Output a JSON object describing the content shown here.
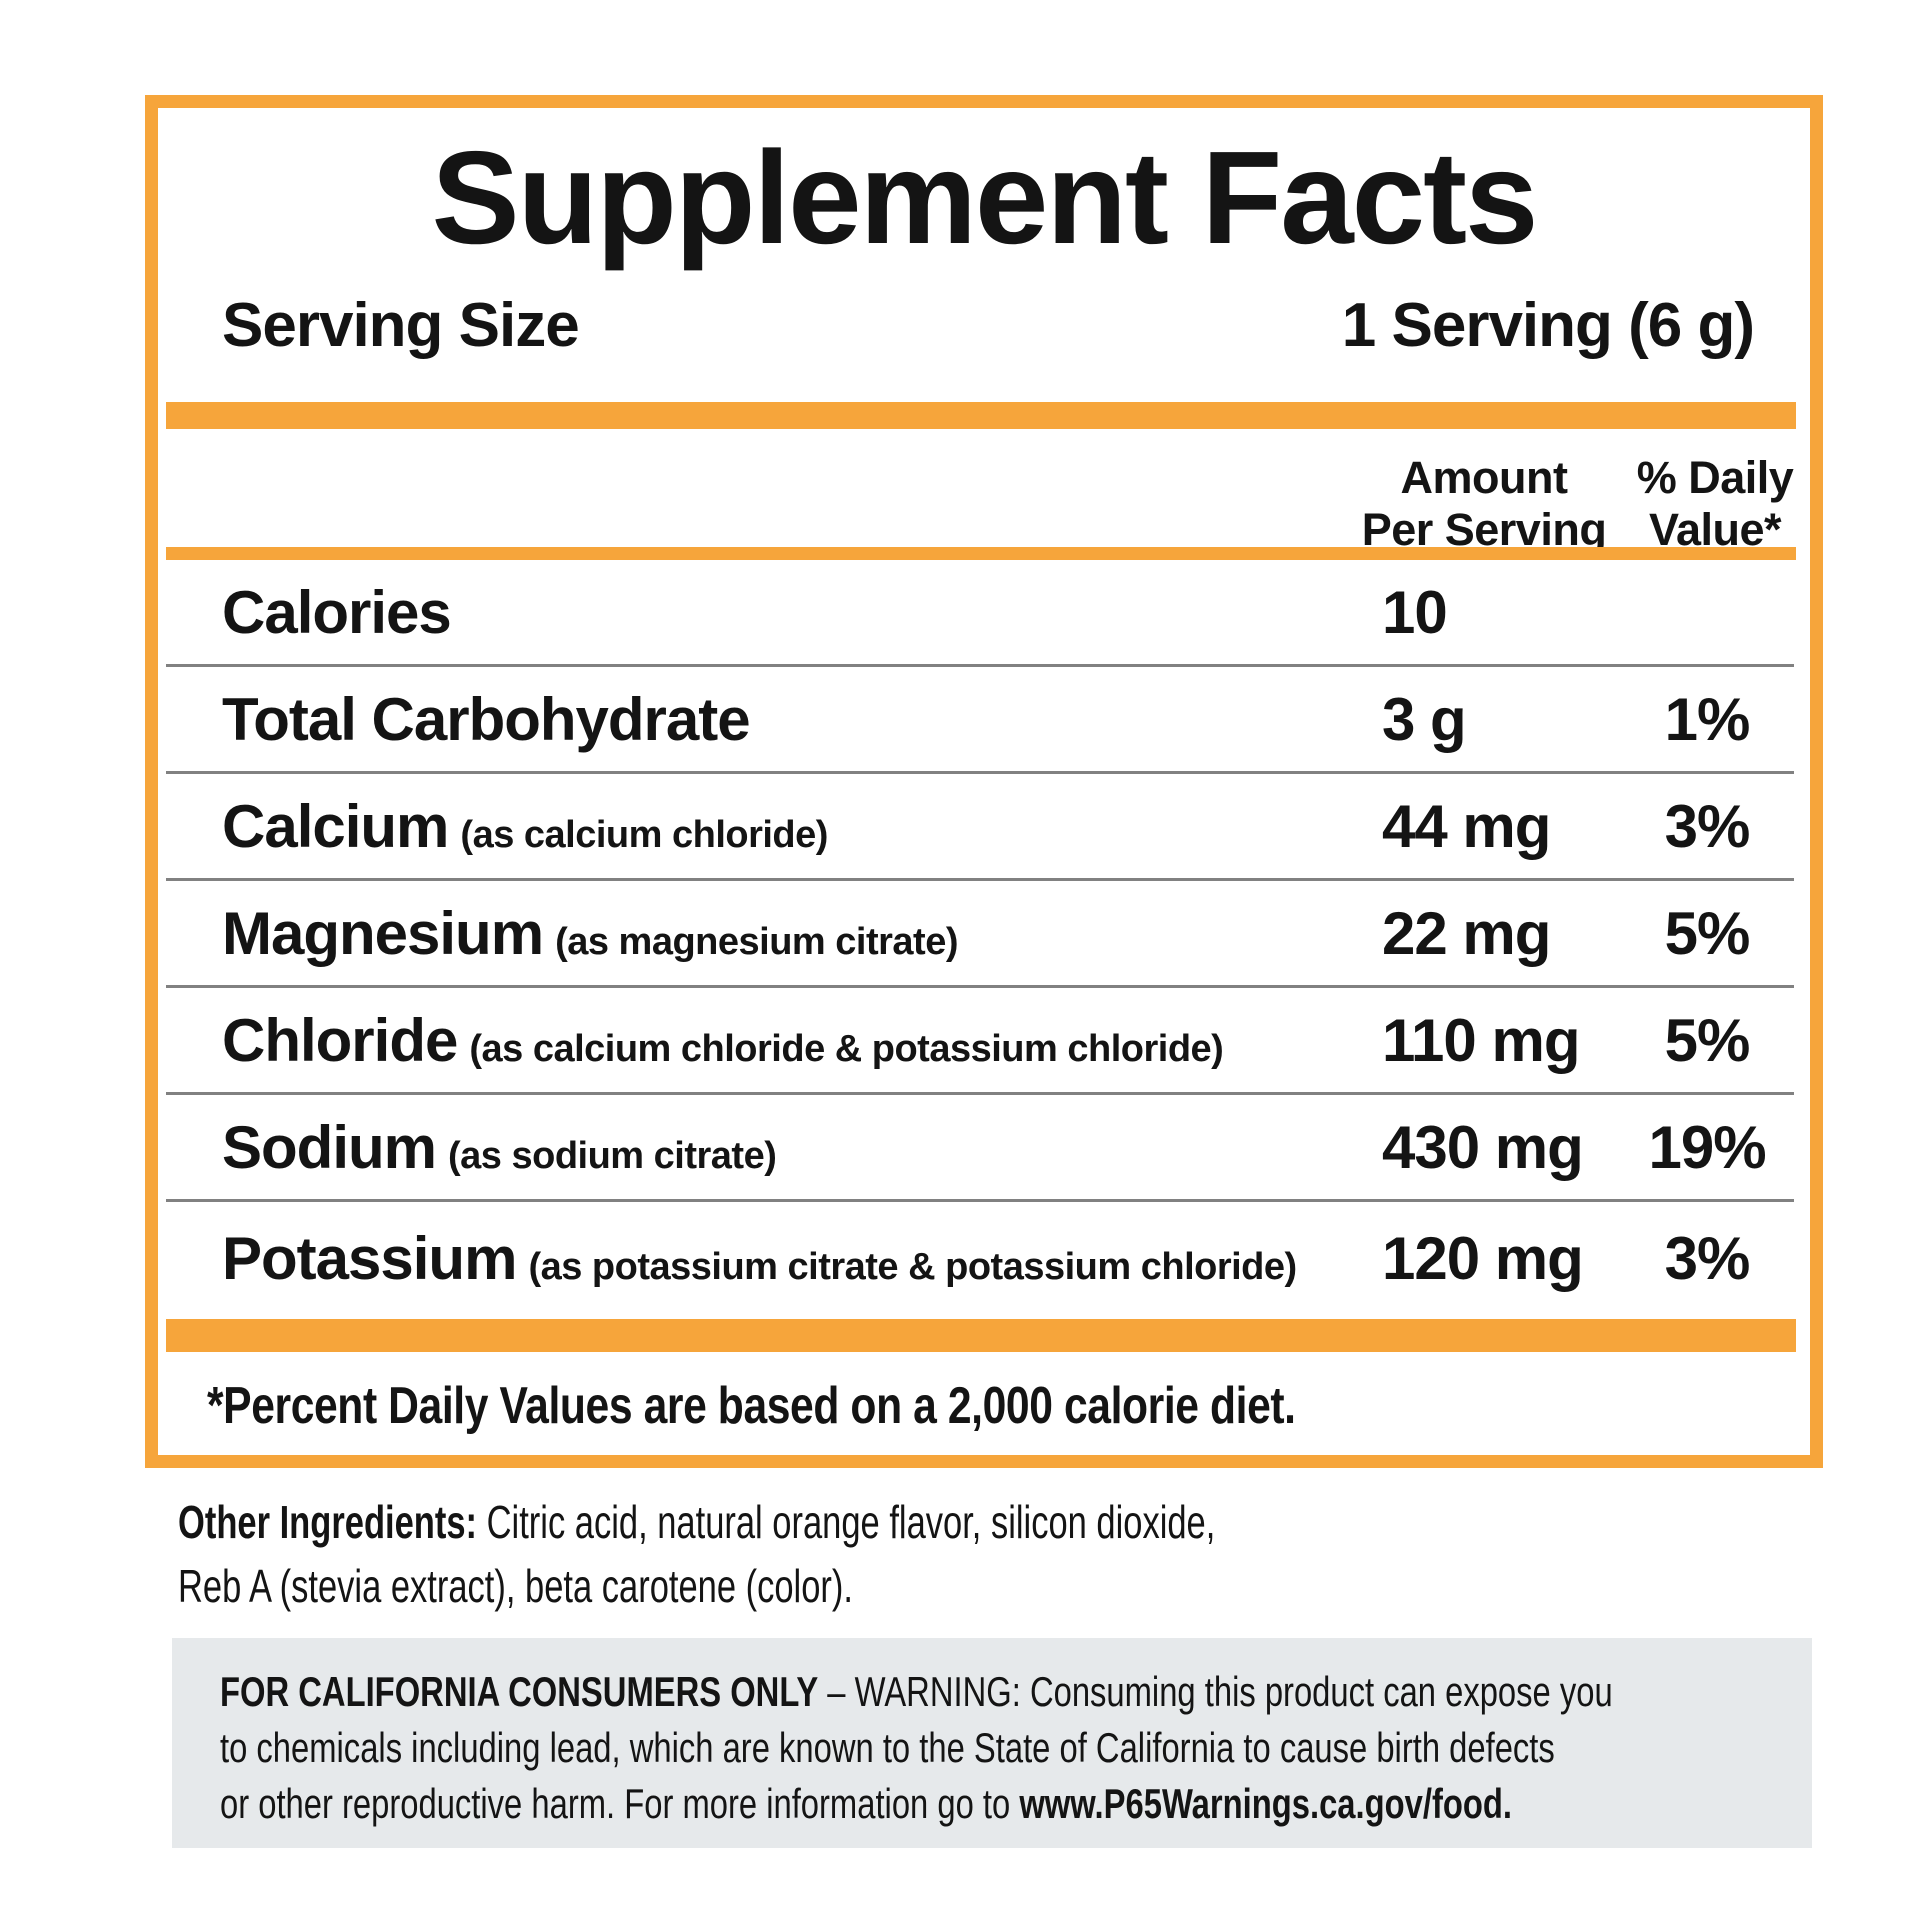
{
  "label": {
    "title": "Supplement Facts",
    "serving": {
      "label": "Serving Size",
      "value": "1 Serving (6 g)"
    },
    "columns": {
      "amount_line1": "Amount",
      "amount_line2": "Per Serving",
      "dv_line1": "% Daily",
      "dv_line2": "Value*"
    },
    "rows": [
      {
        "name": "Calories",
        "detail": "",
        "amount": "10",
        "dv": ""
      },
      {
        "name": "Total Carbohydrate",
        "detail": "",
        "amount": "3 g",
        "dv": "1%"
      },
      {
        "name": "Calcium",
        "detail": "(as calcium chloride)",
        "amount": "44 mg",
        "dv": "3%"
      },
      {
        "name": "Magnesium",
        "detail": "(as magnesium citrate)",
        "amount": "22 mg",
        "dv": "5%"
      },
      {
        "name": "Chloride",
        "detail": "(as calcium chloride & potassium chloride)",
        "amount": "110 mg",
        "dv": "5%"
      },
      {
        "name": "Sodium",
        "detail": "(as sodium citrate)",
        "amount": "430 mg",
        "dv": "19%"
      },
      {
        "name": "Potassium",
        "detail": "(as potassium citrate & potassium chloride)",
        "amount": "120 mg",
        "dv": "3%"
      }
    ],
    "footnote": "*Percent Daily Values are based on a 2,000 calorie diet."
  },
  "other_ingredients": {
    "label": "Other Ingredients:",
    "line1": " Citric acid, natural orange flavor, silicon dioxide,",
    "line2": "Reb A (stevia extract), beta carotene (color)."
  },
  "warning": {
    "line1_bold": "FOR CALIFORNIA CONSUMERS ONLY",
    "line1_rest": " – WARNING: Consuming this product can expose you",
    "line2": "to chemicals including lead, which are known to the State of California to cause birth defects",
    "line3_rest": "or other reproductive harm. For more information go to ",
    "line3_bold": "www.P65Warnings.ca.gov/food."
  },
  "colors": {
    "accent_orange": "#F6A53B",
    "warning_background": "#E6E9EB"
  }
}
